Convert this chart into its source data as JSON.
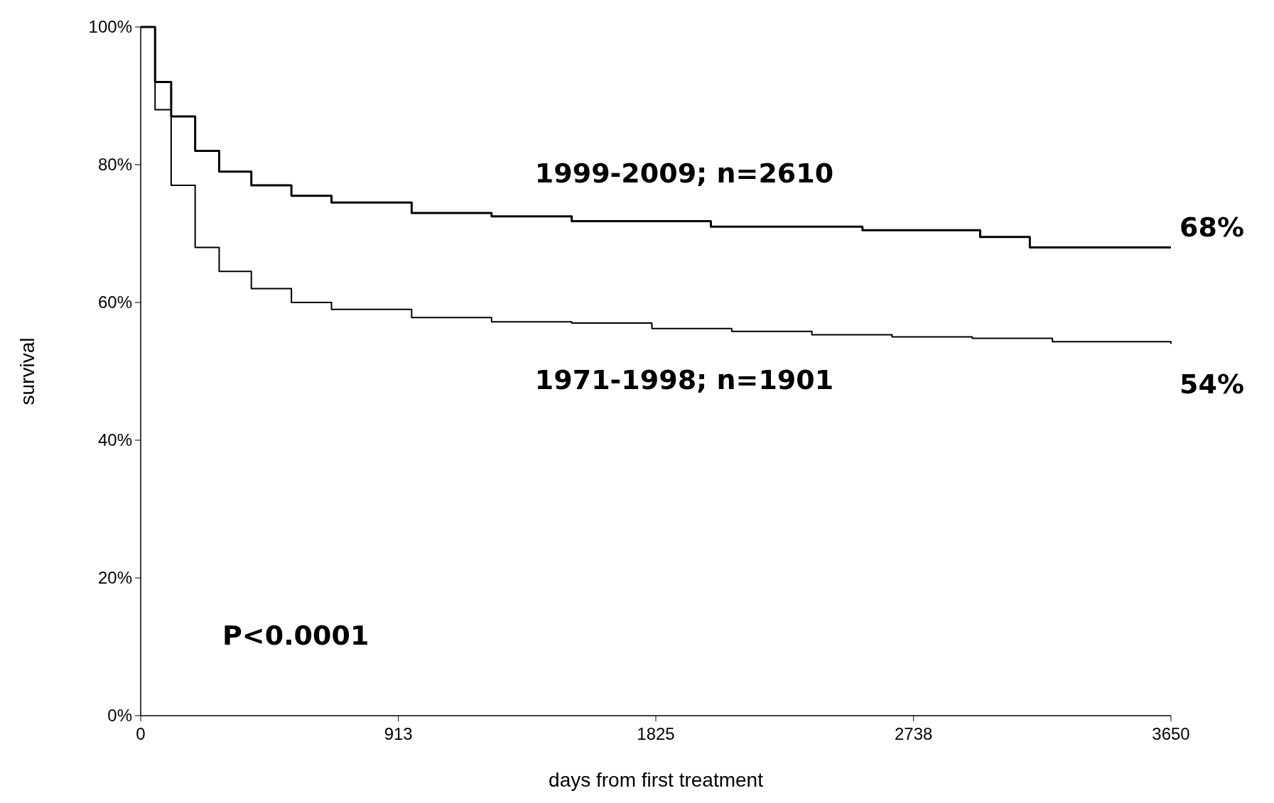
{
  "chart_data": {
    "type": "step",
    "xlabel": "days from first treatment",
    "ylabel": "survival",
    "xlim": [
      0,
      3650
    ],
    "xticks": [
      0,
      913,
      1825,
      2738,
      3650
    ],
    "ylim": [
      0,
      100
    ],
    "yticks": [
      {
        "value": 0,
        "label": "0%"
      },
      {
        "value": 20,
        "label": "20%"
      },
      {
        "value": 40,
        "label": "40%"
      },
      {
        "value": 60,
        "label": "60%"
      },
      {
        "value": 80,
        "label": "80%"
      },
      {
        "value": 100,
        "label": "100%"
      }
    ],
    "grid": false,
    "marker": "none",
    "line_style": "solid",
    "series": [
      {
        "name": "1999-2009; n=2610",
        "color": "#000000",
        "x": [
          0,
          51,
          108,
          193,
          278,
          392,
          534,
          676,
          960,
          1243,
          1527,
          2020,
          2557,
          2974,
          3150,
          3650
        ],
        "values": [
          100,
          92,
          87,
          82,
          79,
          77,
          75.5,
          74.5,
          73,
          72.5,
          71.8,
          71,
          70.5,
          69.5,
          68,
          68
        ]
      },
      {
        "name": "1971-1998; n=1901",
        "color": "#000000",
        "x": [
          0,
          51,
          108,
          193,
          278,
          392,
          534,
          676,
          960,
          1243,
          1527,
          1811,
          2094,
          2378,
          2662,
          2946,
          3230,
          3650
        ],
        "values": [
          100,
          88,
          77,
          68,
          64.5,
          62,
          60,
          59,
          57.8,
          57.2,
          57,
          56.2,
          55.8,
          55.3,
          55,
          54.8,
          54.3,
          54
        ]
      }
    ],
    "annotations": [
      {
        "text": "68%",
        "x": 3650,
        "y": 68
      },
      {
        "text": "54%",
        "x": 3650,
        "y": 54
      },
      "P<0.0001"
    ]
  }
}
